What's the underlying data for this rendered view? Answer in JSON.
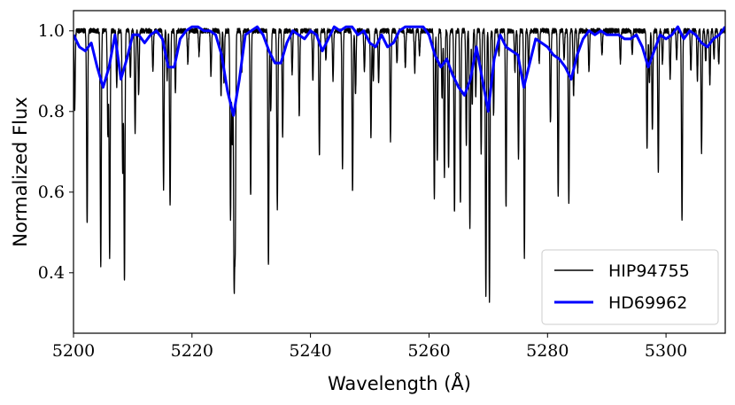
{
  "chart_data": {
    "type": "line",
    "title": "",
    "xlabel": "Wavelength (Å)",
    "ylabel": "Normalized Flux",
    "xlim": [
      5200,
      5310
    ],
    "ylim": [
      0.25,
      1.05
    ],
    "xticks": [
      5200,
      5220,
      5240,
      5260,
      5280,
      5300
    ],
    "xtick_labels": [
      "5200",
      "5220",
      "5240",
      "5260",
      "5280",
      "5300"
    ],
    "yticks": [
      0.4,
      0.6,
      0.8,
      1.0
    ],
    "ytick_labels": [
      "0.4",
      "0.6",
      "0.8",
      "1.0"
    ],
    "grid": false,
    "legend_position": "bottom-right",
    "series": [
      {
        "name": "HIP94755",
        "color": "#000000",
        "continuum": 1.0,
        "lines": [
          [
            5200.2,
            0.8
          ],
          [
            5202.3,
            0.52
          ],
          [
            5204.6,
            0.42
          ],
          [
            5205.8,
            0.74
          ],
          [
            5206.1,
            0.44
          ],
          [
            5207.3,
            0.86
          ],
          [
            5208.3,
            0.65
          ],
          [
            5208.6,
            0.38
          ],
          [
            5209.6,
            0.88
          ],
          [
            5210.4,
            0.75
          ],
          [
            5211.0,
            0.84
          ],
          [
            5213.4,
            0.9
          ],
          [
            5215.2,
            0.61
          ],
          [
            5215.8,
            0.88
          ],
          [
            5216.3,
            0.57
          ],
          [
            5217.2,
            0.85
          ],
          [
            5219.3,
            0.92
          ],
          [
            5221.2,
            0.94
          ],
          [
            5223.2,
            0.89
          ],
          [
            5224.9,
            0.84
          ],
          [
            5225.4,
            0.87
          ],
          [
            5226.5,
            0.53
          ],
          [
            5226.8,
            0.72
          ],
          [
            5227.1,
            0.4
          ],
          [
            5227.3,
            0.5
          ],
          [
            5228.4,
            0.9
          ],
          [
            5229.9,
            0.59
          ],
          [
            5232.9,
            0.42
          ],
          [
            5233.3,
            0.8
          ],
          [
            5234.4,
            0.56
          ],
          [
            5235.3,
            0.74
          ],
          [
            5236.9,
            0.89
          ],
          [
            5238.1,
            0.79
          ],
          [
            5240.4,
            0.88
          ],
          [
            5241.5,
            0.69
          ],
          [
            5242.6,
            0.93
          ],
          [
            5243.8,
            0.88
          ],
          [
            5245.4,
            0.66
          ],
          [
            5247.1,
            0.6
          ],
          [
            5247.6,
            0.84
          ],
          [
            5249.1,
            0.9
          ],
          [
            5250.2,
            0.74
          ],
          [
            5250.6,
            0.88
          ],
          [
            5251.5,
            0.87
          ],
          [
            5253.5,
            0.73
          ],
          [
            5254.6,
            0.92
          ],
          [
            5256.0,
            0.91
          ],
          [
            5257.6,
            0.9
          ],
          [
            5258.4,
            0.94
          ],
          [
            5260.9,
            0.58
          ],
          [
            5261.4,
            0.68
          ],
          [
            5262.2,
            0.83
          ],
          [
            5262.6,
            0.64
          ],
          [
            5263.3,
            0.66
          ],
          [
            5264.3,
            0.55
          ],
          [
            5265.3,
            0.57
          ],
          [
            5266.3,
            0.72
          ],
          [
            5266.9,
            0.51
          ],
          [
            5267.3,
            0.82
          ],
          [
            5267.9,
            0.84
          ],
          [
            5268.8,
            0.7
          ],
          [
            5269.6,
            0.34
          ],
          [
            5270.2,
            0.33
          ],
          [
            5270.9,
            0.79
          ],
          [
            5271.8,
            0.94
          ],
          [
            5273.0,
            0.56
          ],
          [
            5274.5,
            0.9
          ],
          [
            5275.1,
            0.68
          ],
          [
            5276.1,
            0.44
          ],
          [
            5276.8,
            0.9
          ],
          [
            5278.6,
            0.92
          ],
          [
            5280.5,
            0.77
          ],
          [
            5281.8,
            0.59
          ],
          [
            5282.8,
            0.93
          ],
          [
            5283.6,
            0.57
          ],
          [
            5284.4,
            0.84
          ],
          [
            5285.1,
            0.9
          ],
          [
            5287.0,
            0.9
          ],
          [
            5289.2,
            0.94
          ],
          [
            5292.3,
            0.92
          ],
          [
            5294.3,
            0.94
          ],
          [
            5296.8,
            0.71
          ],
          [
            5297.2,
            0.87
          ],
          [
            5297.7,
            0.75
          ],
          [
            5298.7,
            0.65
          ],
          [
            5299.4,
            0.92
          ],
          [
            5300.7,
            0.88
          ],
          [
            5301.8,
            0.93
          ],
          [
            5302.7,
            0.53
          ],
          [
            5304.2,
            0.9
          ],
          [
            5305.3,
            0.88
          ],
          [
            5306.0,
            0.7
          ],
          [
            5306.7,
            0.92
          ],
          [
            5307.4,
            0.87
          ],
          [
            5308.1,
            0.93
          ],
          [
            5308.9,
            0.92
          ]
        ]
      },
      {
        "name": "HD69962",
        "color": "#0000ff",
        "x": [
          5200,
          5201,
          5202,
          5203,
          5204,
          5205,
          5206,
          5207,
          5208,
          5209,
          5210,
          5211,
          5212,
          5213,
          5214,
          5215,
          5216,
          5217,
          5218,
          5219,
          5220,
          5221,
          5222,
          5223,
          5224,
          5225,
          5226,
          5227,
          5228,
          5229,
          5230,
          5231,
          5232,
          5233,
          5234,
          5235,
          5236,
          5237,
          5238,
          5239,
          5240,
          5241,
          5242,
          5243,
          5244,
          5245,
          5246,
          5247,
          5248,
          5249,
          5250,
          5251,
          5252,
          5253,
          5254,
          5255,
          5256,
          5257,
          5258,
          5259,
          5260,
          5261,
          5262,
          5263,
          5264,
          5265,
          5266,
          5267,
          5268,
          5269,
          5270,
          5271,
          5272,
          5273,
          5274,
          5275,
          5276,
          5277,
          5278,
          5279,
          5280,
          5281,
          5282,
          5283,
          5284,
          5285,
          5286,
          5287,
          5288,
          5289,
          5290,
          5291,
          5292,
          5293,
          5294,
          5295,
          5296,
          5297,
          5298,
          5299,
          5300,
          5301,
          5302,
          5303,
          5304,
          5305,
          5306,
          5307,
          5308,
          5309,
          5310
        ],
        "y": [
          0.99,
          0.96,
          0.95,
          0.97,
          0.91,
          0.86,
          0.91,
          0.99,
          0.88,
          0.93,
          0.99,
          0.99,
          0.97,
          0.99,
          1.0,
          0.98,
          0.91,
          0.91,
          0.98,
          1.0,
          1.01,
          1.01,
          1.0,
          1.0,
          0.99,
          0.94,
          0.85,
          0.79,
          0.88,
          0.99,
          1.0,
          1.01,
          0.99,
          0.95,
          0.92,
          0.92,
          0.97,
          1.0,
          0.99,
          0.98,
          1.0,
          0.99,
          0.95,
          0.98,
          1.01,
          1.0,
          1.01,
          1.01,
          0.99,
          1.0,
          0.97,
          0.96,
          0.99,
          0.96,
          0.97,
          1.0,
          1.01,
          1.01,
          1.01,
          1.01,
          0.99,
          0.94,
          0.91,
          0.93,
          0.89,
          0.86,
          0.84,
          0.88,
          0.96,
          0.88,
          0.8,
          0.93,
          0.99,
          0.96,
          0.95,
          0.94,
          0.86,
          0.92,
          0.98,
          0.97,
          0.96,
          0.94,
          0.93,
          0.91,
          0.88,
          0.94,
          0.98,
          1.0,
          0.99,
          1.0,
          0.99,
          0.99,
          0.99,
          0.98,
          0.98,
          0.99,
          0.96,
          0.91,
          0.95,
          0.99,
          0.98,
          0.99,
          1.01,
          0.98,
          1.0,
          0.99,
          0.97,
          0.96,
          0.98,
          0.99,
          1.01
        ]
      }
    ]
  }
}
